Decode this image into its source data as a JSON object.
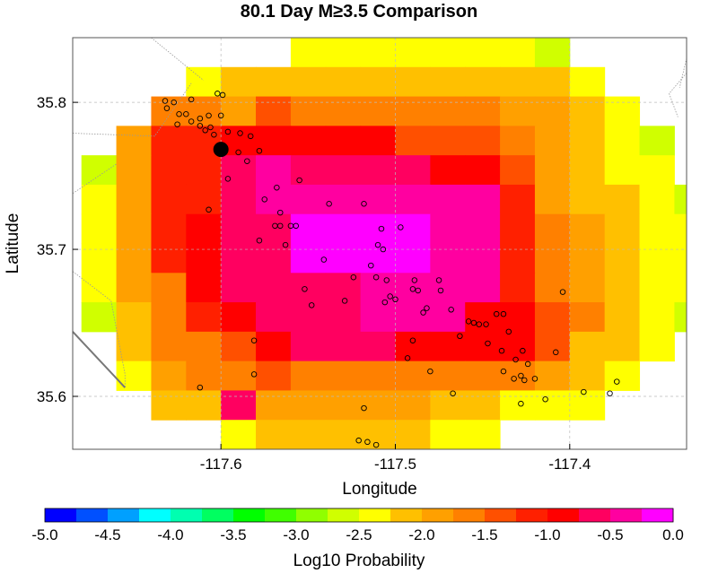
{
  "chart_data": {
    "type": "heatmap",
    "title": "80.1 Day M≥3.5 Comparison",
    "xlabel": "Longitude",
    "ylabel": "Latitude",
    "xlim": [
      -117.685,
      -117.333
    ],
    "ylim": [
      35.564,
      35.844
    ],
    "xticks": [
      -117.6,
      -117.5,
      -117.4
    ],
    "xtick_labels": [
      "-117.6",
      "-117.5",
      "-117.4"
    ],
    "yticks": [
      35.6,
      35.7,
      35.8
    ],
    "ytick_labels": [
      "35.6",
      "35.7",
      "35.8"
    ],
    "grid": true,
    "colorbar": {
      "label": "Log10 Probability",
      "min": -5.0,
      "max": 0.0,
      "step": 0.25,
      "ticks": [
        -5.0,
        -4.5,
        -4.0,
        -3.5,
        -3.0,
        -2.5,
        -2.0,
        -1.5,
        -1.0,
        -0.5,
        0.0
      ],
      "tick_labels": [
        "-5.0",
        "-4.5",
        "-4.0",
        "-3.5",
        "-3.0",
        "-2.5",
        "-2.0",
        "-1.5",
        "-1.0",
        "-0.5",
        "0.0"
      ],
      "colors": [
        "#0000ff",
        "#0050ff",
        "#00a0ff",
        "#00ffff",
        "#00ffb0",
        "#00ff60",
        "#00ff00",
        "#40ff00",
        "#90ff00",
        "#d0ff00",
        "#ffff00",
        "#ffc000",
        "#ffa000",
        "#ff8000",
        "#ff5000",
        "#ff2000",
        "#ff0000",
        "#ff0060",
        "#ff00a0",
        "#ff00ff"
      ]
    },
    "grid_cells": {
      "lon0": -117.68,
      "lat0": 35.844,
      "dlon": 0.02,
      "dlat": 0.02,
      "values": [
        [
          null,
          null,
          null,
          null,
          null,
          null,
          -2.5,
          -2.5,
          -2.5,
          -2.5,
          -2.5,
          -2.5,
          -2.5,
          -2.7,
          null,
          null,
          null,
          null
        ],
        [
          null,
          null,
          null,
          -2.5,
          -2.1,
          -2.1,
          -2.1,
          -2.1,
          -2.1,
          -2.1,
          -2.1,
          -2.1,
          -2.1,
          -2.1,
          -2.5,
          null,
          null,
          null
        ],
        [
          null,
          null,
          -1.6,
          -1.6,
          -1.9,
          -1.4,
          -1.6,
          -1.6,
          -1.6,
          -1.6,
          -1.6,
          -1.6,
          -1.9,
          -1.9,
          -2.1,
          -2.3,
          null,
          null
        ],
        [
          null,
          -1.9,
          -1.1,
          -1.1,
          -0.8,
          -1.0,
          -1.0,
          -1.0,
          -1.0,
          -1.4,
          -1.4,
          -1.4,
          -1.6,
          -1.9,
          -2.1,
          -2.3,
          -2.7,
          null
        ],
        [
          -2.6,
          -1.9,
          -1.1,
          -1.1,
          -0.6,
          -0.3,
          -0.6,
          -0.6,
          -0.6,
          -0.6,
          -1.0,
          -1.0,
          -1.4,
          -1.9,
          -2.1,
          -2.3,
          -2.3,
          null
        ],
        [
          -2.3,
          -1.9,
          -1.2,
          -1.1,
          -0.6,
          -0.3,
          -0.3,
          -0.3,
          -0.5,
          -0.5,
          -0.5,
          -0.5,
          -1.1,
          -1.9,
          -2.1,
          -2.1,
          -2.3,
          -2.7
        ],
        [
          -2.3,
          -1.9,
          -1.2,
          -1.0,
          -0.6,
          -0.6,
          0.0,
          0.0,
          0.0,
          0.0,
          -0.5,
          -0.5,
          -1.1,
          -1.6,
          -1.9,
          -2.1,
          -2.3,
          -2.3
        ],
        [
          -2.3,
          -1.9,
          -1.2,
          -1.0,
          -0.6,
          -0.6,
          0.0,
          0.0,
          0.0,
          0.0,
          -0.5,
          -0.5,
          -1.1,
          -1.6,
          -1.9,
          -2.1,
          -2.3,
          -2.3
        ],
        [
          -2.3,
          -1.9,
          -1.6,
          -1.0,
          -0.6,
          -0.6,
          -0.6,
          -0.6,
          -0.3,
          -0.3,
          -0.5,
          -0.5,
          -1.1,
          -1.6,
          -1.9,
          -2.1,
          -2.3,
          -2.3
        ],
        [
          -2.6,
          -2.1,
          -1.6,
          -1.2,
          -1.0,
          -0.6,
          -0.6,
          -0.6,
          -0.3,
          -0.3,
          -0.5,
          -0.9,
          -0.9,
          -1.3,
          -1.6,
          -2.1,
          -2.3,
          -2.7
        ],
        [
          null,
          -2.1,
          -1.6,
          -1.6,
          -1.4,
          -0.9,
          -0.6,
          -0.6,
          -0.6,
          -0.9,
          -0.9,
          -0.9,
          -0.9,
          -1.3,
          -2.1,
          -2.1,
          -2.3,
          null
        ],
        [
          null,
          -2.3,
          -2.0,
          -1.6,
          -1.6,
          -1.4,
          -1.6,
          -1.6,
          -1.6,
          -1.6,
          -1.6,
          -1.6,
          -1.6,
          -1.9,
          -2.1,
          -2.3,
          null,
          null
        ],
        [
          null,
          null,
          -2.1,
          -2.1,
          -0.6,
          -1.9,
          -1.9,
          -1.9,
          -1.9,
          -1.9,
          -2.1,
          -2.1,
          -2.3,
          -2.3,
          -2.3,
          null,
          null,
          null
        ],
        [
          null,
          null,
          null,
          null,
          -2.3,
          -2.1,
          -2.1,
          -2.1,
          -2.1,
          -2.1,
          -2.3,
          -2.3,
          null,
          null,
          null,
          null,
          null,
          null
        ]
      ]
    },
    "earthquakes": [
      [
        -117.632,
        35.801,
        "s"
      ],
      [
        -117.627,
        35.8,
        "s"
      ],
      [
        -117.617,
        35.802,
        "s"
      ],
      [
        -117.602,
        35.806,
        "s"
      ],
      [
        -117.599,
        35.805,
        "s"
      ],
      [
        -117.631,
        35.796,
        "s"
      ],
      [
        -117.624,
        35.792,
        "s"
      ],
      [
        -117.62,
        35.792,
        "s"
      ],
      [
        -117.612,
        35.789,
        "s"
      ],
      [
        -117.607,
        35.791,
        "s"
      ],
      [
        -117.6,
        35.791,
        "s"
      ],
      [
        -117.625,
        35.785,
        "s"
      ],
      [
        -117.617,
        35.787,
        "s"
      ],
      [
        -117.612,
        35.784,
        "s"
      ],
      [
        -117.609,
        35.781,
        "s"
      ],
      [
        -117.606,
        35.783,
        "s"
      ],
      [
        -117.604,
        35.778,
        "s"
      ],
      [
        -117.596,
        35.78,
        "s"
      ],
      [
        -117.589,
        35.779,
        "s"
      ],
      [
        -117.583,
        35.777,
        "s"
      ],
      [
        -117.585,
        35.76,
        "s"
      ],
      [
        -117.578,
        35.767,
        "s"
      ],
      [
        -117.59,
        35.766,
        "s"
      ],
      [
        -117.596,
        35.748,
        "s"
      ],
      [
        -117.568,
        35.742,
        "s"
      ],
      [
        -117.555,
        35.747,
        "s"
      ],
      [
        -117.575,
        35.734,
        "s"
      ],
      [
        -117.566,
        35.725,
        "s"
      ],
      [
        -117.566,
        35.716,
        "s"
      ],
      [
        -117.56,
        35.716,
        "s"
      ],
      [
        -117.557,
        35.716,
        "s"
      ],
      [
        -117.569,
        35.716,
        "s"
      ],
      [
        -117.578,
        35.706,
        "s"
      ],
      [
        -117.563,
        35.703,
        "s"
      ],
      [
        -117.607,
        35.727,
        "s"
      ],
      [
        -117.538,
        35.731,
        "s"
      ],
      [
        -117.518,
        35.731,
        "s"
      ],
      [
        -117.508,
        35.714,
        "s"
      ],
      [
        -117.497,
        35.715,
        "s"
      ],
      [
        -117.51,
        35.703,
        "s"
      ],
      [
        -117.507,
        35.7,
        "s"
      ],
      [
        -117.514,
        35.689,
        "s"
      ],
      [
        -117.524,
        35.681,
        "s"
      ],
      [
        -117.511,
        35.681,
        "s"
      ],
      [
        -117.505,
        35.679,
        "s"
      ],
      [
        -117.489,
        35.679,
        "s"
      ],
      [
        -117.49,
        35.673,
        "s"
      ],
      [
        -117.487,
        35.672,
        "s"
      ],
      [
        -117.475,
        35.679,
        "s"
      ],
      [
        -117.474,
        35.672,
        "s"
      ],
      [
        -117.541,
        35.693,
        "s"
      ],
      [
        -117.552,
        35.673,
        "s"
      ],
      [
        -117.548,
        35.662,
        "s"
      ],
      [
        -117.529,
        35.665,
        "s"
      ],
      [
        -117.506,
        35.664,
        "s"
      ],
      [
        -117.503,
        35.668,
        "s"
      ],
      [
        -117.5,
        35.666,
        "s"
      ],
      [
        -117.484,
        35.657,
        "s"
      ],
      [
        -117.482,
        35.66,
        "s"
      ],
      [
        -117.468,
        35.659,
        "s"
      ],
      [
        -117.458,
        35.651,
        "s"
      ],
      [
        -117.455,
        35.65,
        "s"
      ],
      [
        -117.452,
        35.649,
        "s"
      ],
      [
        -117.448,
        35.649,
        "s"
      ],
      [
        -117.442,
        35.656,
        "s"
      ],
      [
        -117.438,
        35.656,
        "s"
      ],
      [
        -117.447,
        35.636,
        "s"
      ],
      [
        -117.439,
        35.631,
        "s"
      ],
      [
        -117.435,
        35.644,
        "s"
      ],
      [
        -117.463,
        35.641,
        "s"
      ],
      [
        -117.49,
        35.638,
        "s"
      ],
      [
        -117.493,
        35.626,
        "s"
      ],
      [
        -117.48,
        35.617,
        "s"
      ],
      [
        -117.438,
        35.617,
        "s"
      ],
      [
        -117.431,
        35.625,
        "s"
      ],
      [
        -117.427,
        35.631,
        "s"
      ],
      [
        -117.424,
        35.622,
        "s"
      ],
      [
        -117.428,
        35.614,
        "s"
      ],
      [
        -117.432,
        35.612,
        "s"
      ],
      [
        -117.426,
        35.611,
        "s"
      ],
      [
        -117.42,
        35.612,
        "s"
      ],
      [
        -117.408,
        35.63,
        "s"
      ],
      [
        -117.414,
        35.598,
        "s"
      ],
      [
        -117.404,
        35.671,
        "s"
      ],
      [
        -117.392,
        35.603,
        "s"
      ],
      [
        -117.377,
        35.602,
        "s"
      ],
      [
        -117.373,
        35.61,
        "s"
      ],
      [
        -117.581,
        35.638,
        "s"
      ],
      [
        -117.581,
        35.615,
        "s"
      ],
      [
        -117.612,
        35.606,
        "s"
      ],
      [
        -117.467,
        35.602,
        "s"
      ],
      [
        -117.518,
        35.592,
        "s"
      ],
      [
        -117.521,
        35.57,
        "s"
      ],
      [
        -117.516,
        35.569,
        "s"
      ],
      [
        -117.511,
        35.567,
        "s"
      ],
      [
        -117.428,
        35.595,
        "s"
      ],
      [
        -117.6,
        35.768,
        "L"
      ]
    ],
    "boundary_lines": [
      [
        [
          -117.685,
          35.685
        ],
        [
          -117.663,
          35.665
        ],
        [
          -117.655,
          35.615
        ],
        [
          -117.655,
          35.606
        ]
      ],
      [
        [
          -117.685,
          35.738
        ],
        [
          -117.66,
          35.758
        ]
      ],
      [
        [
          -117.685,
          35.779
        ],
        [
          -117.638,
          35.777
        ],
        [
          -117.617,
          35.813
        ]
      ],
      [
        [
          -117.64,
          35.844
        ],
        [
          -117.61,
          35.815
        ]
      ],
      [
        [
          -117.685,
          35.644
        ],
        [
          -117.655,
          35.606
        ]
      ],
      [
        [
          -117.333,
          35.82
        ],
        [
          -117.343,
          35.806
        ],
        [
          -117.338,
          35.79
        ]
      ],
      [
        [
          -117.333,
          35.83
        ],
        [
          -117.337,
          35.81
        ]
      ]
    ]
  }
}
